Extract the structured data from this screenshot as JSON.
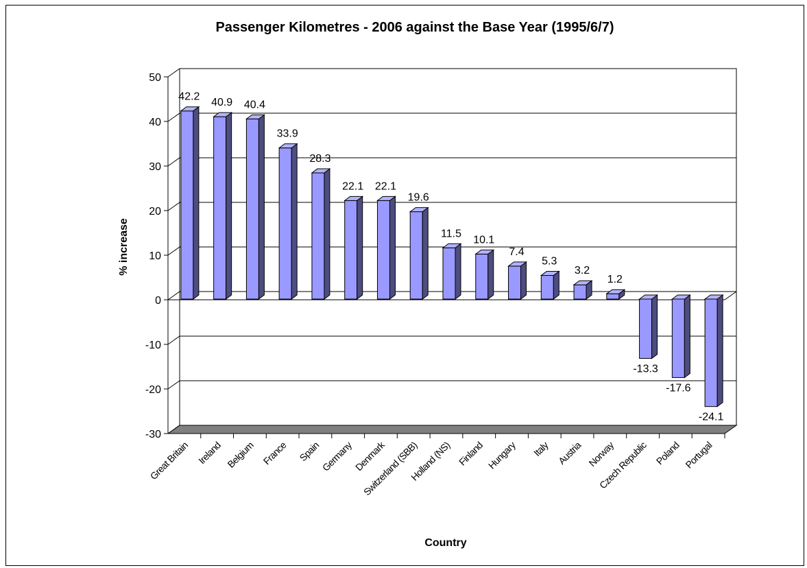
{
  "chart_data": {
    "type": "bar",
    "title": "Passenger Kilometres - 2006 against the Base Year (1995/6/7)",
    "xlabel": "Country",
    "ylabel": "% increase",
    "ylim": [
      -30,
      50
    ],
    "yticks": [
      "50",
      "40",
      "30",
      "20",
      "10",
      "0",
      "-10",
      "-20",
      "-30"
    ],
    "grid": true,
    "legend": "none",
    "categories": [
      "Great Britain",
      "Ireland",
      "Belgium",
      "France",
      "Spain",
      "Germany",
      "Denmark",
      "Switzerland (SBB)",
      "Holland (NS)",
      "Finland",
      "Hungary",
      "Italy",
      "Austria",
      "Norway",
      "Czech Republic",
      "Poland",
      "Portugal"
    ],
    "values": [
      42.2,
      40.9,
      40.4,
      33.9,
      28.3,
      22.1,
      22.1,
      19.6,
      11.5,
      10.1,
      7.4,
      5.3,
      3.2,
      1.2,
      -13.3,
      -17.6,
      -24.1
    ],
    "data_labels": [
      "42.2",
      "40.9",
      "40.4",
      "33.9",
      "28.3",
      "22.1",
      "22.1",
      "19.6",
      "11.5",
      "10.1",
      "7.4",
      "5.3",
      "3.2",
      "1.2",
      "-13.3",
      "-17.6",
      "-24.1"
    ]
  },
  "colors": {
    "bar_front": "#9999ff",
    "bar_side": "#4d4d80",
    "bar_top": "#b3b3ff",
    "floor": "#808080",
    "grid": "#000000"
  }
}
